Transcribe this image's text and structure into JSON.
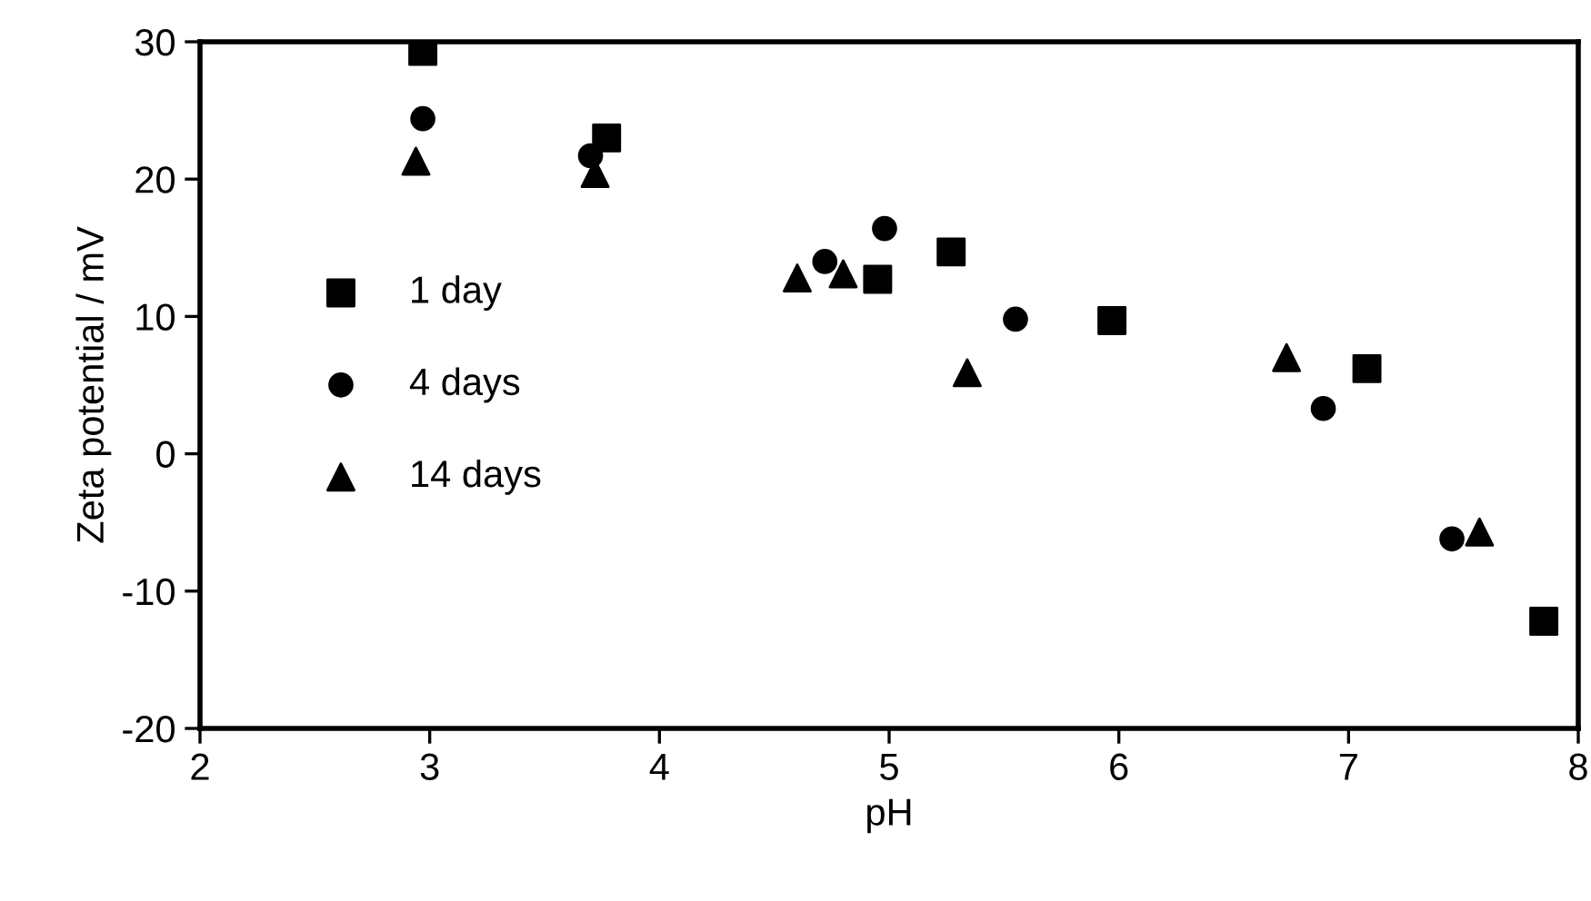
{
  "chart_data": {
    "type": "scatter",
    "xlabel": "pH",
    "ylabel": "Zeta potential / mV",
    "xlim": [
      2,
      8
    ],
    "ylim": [
      -20,
      30
    ],
    "xticks": [
      2,
      3,
      4,
      5,
      6,
      7,
      8
    ],
    "yticks": [
      -20,
      -10,
      0,
      10,
      20,
      30
    ],
    "grid": false,
    "legend": "left",
    "series": [
      {
        "name": "1 day",
        "color": "#000000",
        "marker": "square",
        "x": [
          2.97,
          3.77,
          4.95,
          5.27,
          5.97,
          7.08,
          7.85
        ],
        "values": [
          29.3,
          23.0,
          12.7,
          14.7,
          9.7,
          6.2,
          -12.2
        ]
      },
      {
        "name": "4 days",
        "color": "#000000",
        "marker": "circle",
        "x": [
          2.97,
          3.7,
          4.72,
          4.98,
          5.55,
          6.89,
          7.45
        ],
        "values": [
          24.4,
          21.7,
          14.0,
          16.4,
          9.8,
          3.3,
          -6.2
        ]
      },
      {
        "name": "14 days",
        "color": "#000000",
        "marker": "triangle",
        "x": [
          2.94,
          3.72,
          4.6,
          4.8,
          5.34,
          6.73,
          7.57
        ],
        "values": [
          21.3,
          20.4,
          12.8,
          13.1,
          5.9,
          7.0,
          -5.7
        ]
      }
    ]
  }
}
